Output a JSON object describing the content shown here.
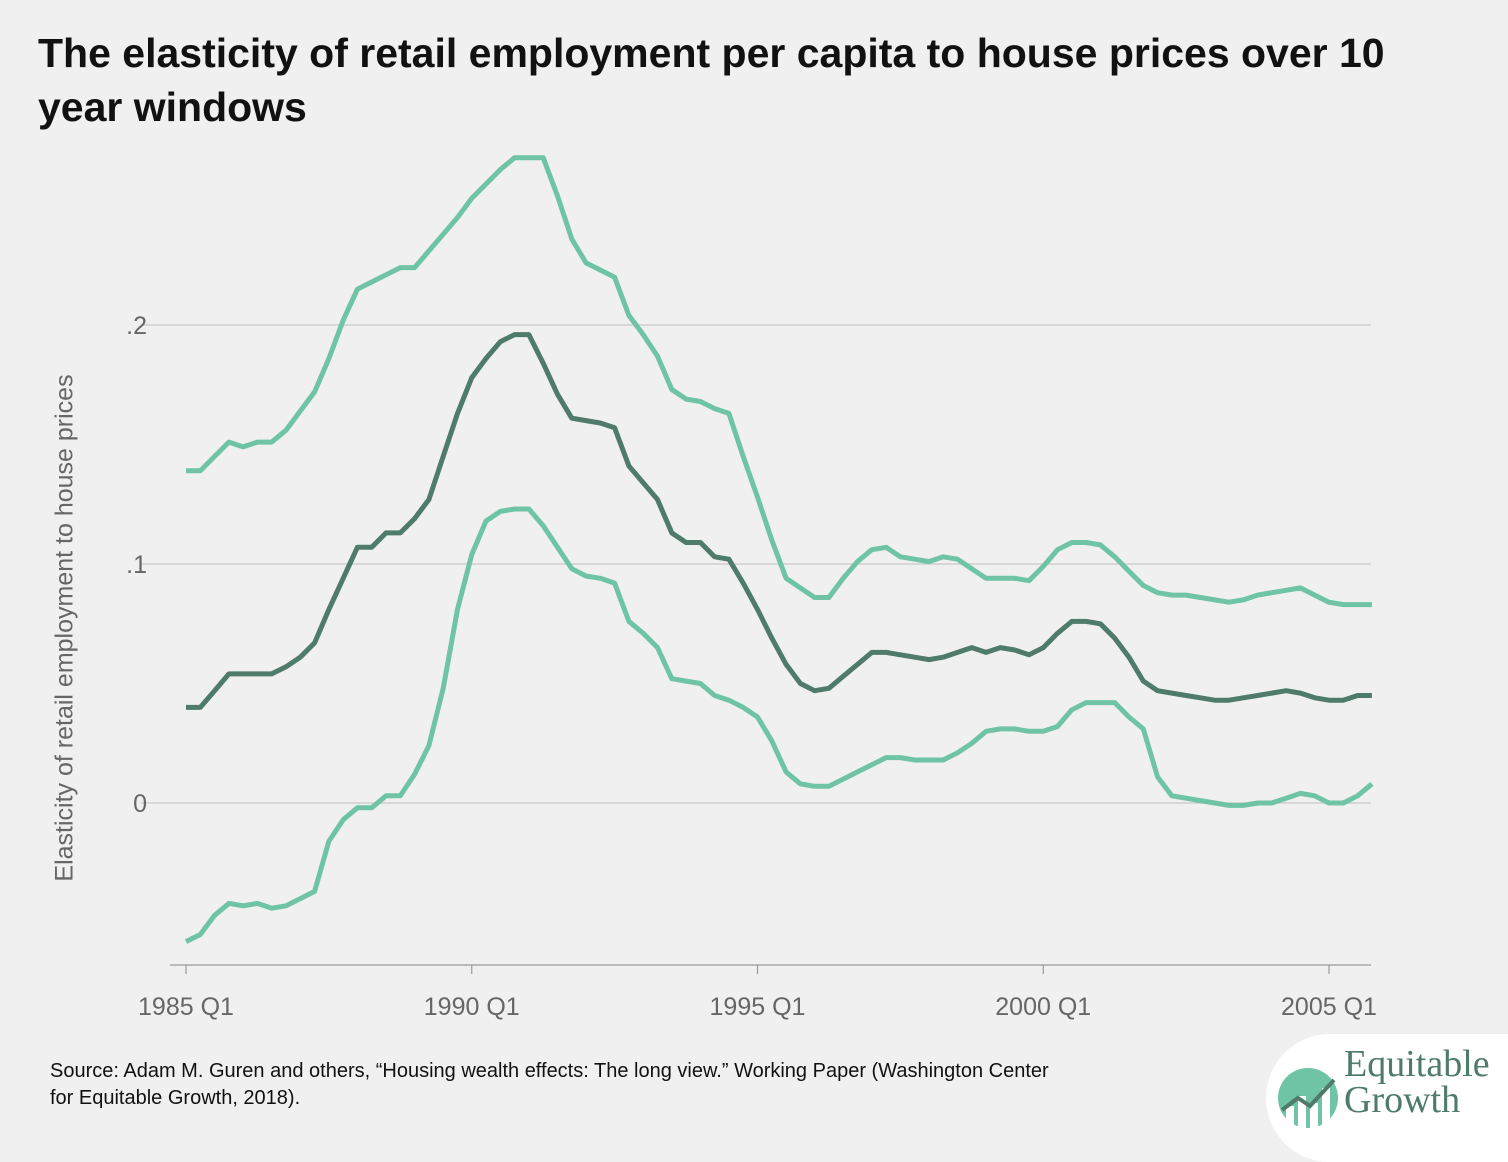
{
  "title": "The elasticity of retail employment per capita to house prices over 10 year windows",
  "source": "Source: Adam M. Guren and others,  “Housing wealth effects: The long view.” Working Paper (Washington Center for Equitable Growth, 2018).",
  "logo": {
    "line1": "Equitable",
    "line2": "Growth",
    "icon": "rising-line-chart-logo-icon"
  },
  "colors": {
    "background": "#f0f0f0",
    "estimate": "#4e7b6a",
    "band": "#6ec4a4",
    "grid": "#c8c8c8",
    "axis_text": "#666666"
  },
  "chart_data": {
    "type": "line",
    "title": "The elasticity of retail employment per capita to house prices over 10 year windows",
    "xlabel": "",
    "ylabel": "Elasticity of retail employment to house prices",
    "x_start": 1985,
    "x_step": 0.25,
    "xlim": [
      1985.0,
      2005.75
    ],
    "ylim": [
      -0.07,
      0.27
    ],
    "xticks": [
      {
        "value": 1985,
        "label": "1985 Q1"
      },
      {
        "value": 1990,
        "label": "1990 Q1"
      },
      {
        "value": 1995,
        "label": "1995 Q1"
      },
      {
        "value": 2000,
        "label": "2000 Q1"
      },
      {
        "value": 2005,
        "label": "2005 Q1"
      }
    ],
    "yticks": [
      {
        "value": 0,
        "label": "0"
      },
      {
        "value": 0.1,
        "label": ".1"
      },
      {
        "value": 0.2,
        "label": ".2"
      }
    ],
    "grid": true,
    "legend": "none",
    "series": [
      {
        "role": "upper",
        "color": "#6ec4a4",
        "values": [
          0.139,
          0.139,
          0.145,
          0.151,
          0.149,
          0.151,
          0.151,
          0.156,
          0.164,
          0.172,
          0.186,
          0.202,
          0.215,
          0.218,
          0.221,
          0.224,
          0.224,
          0.231,
          0.238,
          0.245,
          0.253,
          0.259,
          0.265,
          0.27,
          0.27,
          0.27,
          0.254,
          0.236,
          0.226,
          0.223,
          0.22,
          0.204,
          0.196,
          0.187,
          0.173,
          0.169,
          0.168,
          0.165,
          0.163,
          0.145,
          0.128,
          0.11,
          0.094,
          0.09,
          0.086,
          0.086,
          0.094,
          0.101,
          0.106,
          0.107,
          0.103,
          0.102,
          0.101,
          0.103,
          0.102,
          0.098,
          0.094,
          0.094,
          0.094,
          0.093,
          0.099,
          0.106,
          0.109,
          0.109,
          0.108,
          0.103,
          0.097,
          0.091,
          0.088,
          0.087,
          0.087,
          0.086,
          0.085,
          0.084,
          0.085,
          0.087,
          0.088,
          0.089,
          0.09,
          0.087,
          0.084,
          0.083,
          0.083,
          0.083
        ]
      },
      {
        "role": "estimate",
        "color": "#4e7b6a",
        "values": [
          0.04,
          0.04,
          0.047,
          0.054,
          0.054,
          0.054,
          0.054,
          0.057,
          0.061,
          0.067,
          0.081,
          0.094,
          0.107,
          0.107,
          0.113,
          0.113,
          0.119,
          0.127,
          0.145,
          0.163,
          0.178,
          0.186,
          0.193,
          0.196,
          0.196,
          0.184,
          0.171,
          0.161,
          0.16,
          0.159,
          0.157,
          0.141,
          0.134,
          0.127,
          0.113,
          0.109,
          0.109,
          0.103,
          0.102,
          0.092,
          0.081,
          0.069,
          0.058,
          0.05,
          0.047,
          0.048,
          0.053,
          0.058,
          0.063,
          0.063,
          0.062,
          0.061,
          0.06,
          0.061,
          0.063,
          0.065,
          0.063,
          0.065,
          0.064,
          0.062,
          0.065,
          0.071,
          0.076,
          0.076,
          0.075,
          0.069,
          0.061,
          0.051,
          0.047,
          0.046,
          0.045,
          0.044,
          0.043,
          0.043,
          0.044,
          0.045,
          0.046,
          0.047,
          0.046,
          0.044,
          0.043,
          0.043,
          0.045,
          0.045
        ]
      },
      {
        "role": "lower",
        "color": "#6ec4a4",
        "values": [
          -0.058,
          -0.055,
          -0.047,
          -0.042,
          -0.043,
          -0.042,
          -0.044,
          -0.043,
          -0.04,
          -0.037,
          -0.016,
          -0.007,
          -0.002,
          -0.002,
          0.003,
          0.003,
          0.012,
          0.024,
          0.048,
          0.081,
          0.104,
          0.118,
          0.122,
          0.123,
          0.123,
          0.116,
          0.107,
          0.098,
          0.095,
          0.094,
          0.092,
          0.076,
          0.071,
          0.065,
          0.052,
          0.051,
          0.05,
          0.045,
          0.043,
          0.04,
          0.036,
          0.026,
          0.013,
          0.008,
          0.007,
          0.007,
          0.01,
          0.013,
          0.016,
          0.019,
          0.019,
          0.018,
          0.018,
          0.018,
          0.021,
          0.025,
          0.03,
          0.031,
          0.031,
          0.03,
          0.03,
          0.032,
          0.039,
          0.042,
          0.042,
          0.042,
          0.036,
          0.031,
          0.011,
          0.003,
          0.002,
          0.001,
          0,
          -0.001,
          -0.001,
          0,
          0,
          0.002,
          0.004,
          0.003,
          0,
          0,
          0.003,
          0.008
        ]
      }
    ]
  }
}
